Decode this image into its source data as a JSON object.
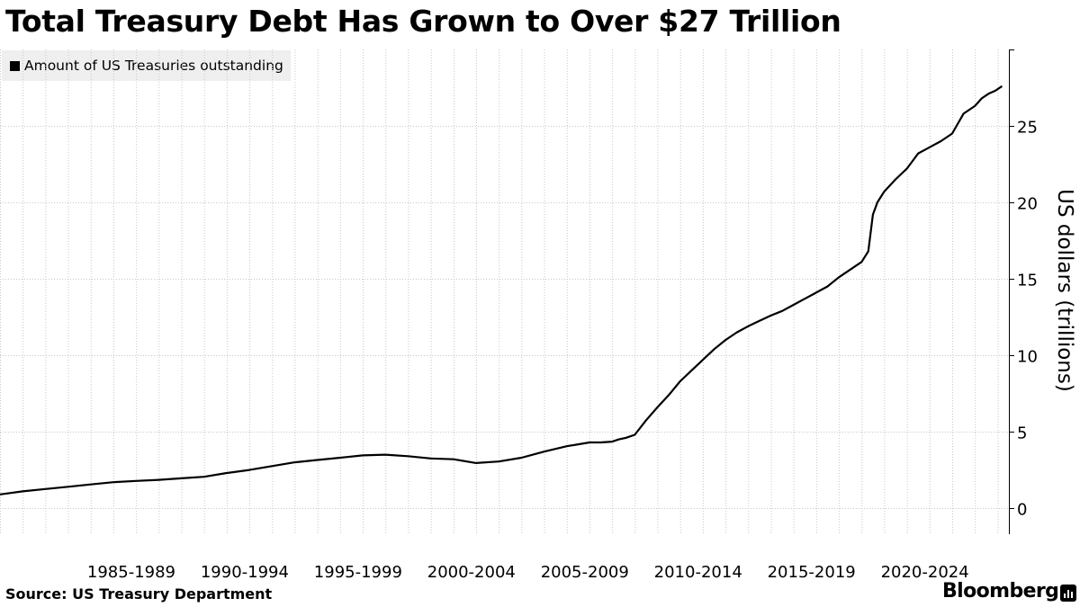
{
  "title": "Total Treasury Debt Has Grown to Over $27 Trillion",
  "source": "Source: US Treasury Department",
  "brand": "Bloomberg",
  "icons": {
    "legend_swatch": "square",
    "brand_mark": "bar-chart-icon"
  },
  "colors": {
    "line": "#000000",
    "grid": "#c8c8c8",
    "legend_bg": "#efefef"
  },
  "chart_data": {
    "type": "line",
    "title": "Total Treasury Debt Has Grown to Over $27 Trillion",
    "xlabel": "",
    "ylabel": "US dollars (trillions)",
    "xlim": [
      1980,
      2024.5
    ],
    "ylim": [
      -1.7,
      30
    ],
    "yticks": [
      0,
      5,
      10,
      15,
      20,
      25
    ],
    "y_axis_side": "right",
    "grid": true,
    "legend_position": "top-left",
    "x_tick_labels": [
      "1985-1989",
      "1990-1994",
      "1995-1999",
      "2000-2004",
      "2005-2009",
      "2010-2014",
      "2015-2019",
      "2020-2024"
    ],
    "x_tick_centers": [
      1985,
      1990,
      1995,
      2000,
      2005,
      2010,
      2015,
      2020
    ],
    "x_gridlines": [
      1980,
      1981,
      1982,
      1983,
      1984,
      1985,
      1986,
      1987,
      1988,
      1989,
      1990,
      1991,
      1992,
      1993,
      1994,
      1995,
      1996,
      1997,
      1998,
      1999,
      2000,
      2001,
      2002,
      2003,
      2004,
      2005,
      2006,
      2007,
      2008,
      2009,
      2010,
      2011,
      2012,
      2013,
      2014,
      2015,
      2016,
      2017,
      2018,
      2019,
      2020,
      2021,
      2022,
      2023,
      2024
    ],
    "series": [
      {
        "name": "Amount of US Treasuries outstanding",
        "x": [
          1980.0,
          1981.0,
          1982.0,
          1983.0,
          1984.0,
          1985.0,
          1986.0,
          1987.0,
          1988.0,
          1989.0,
          1990.0,
          1991.0,
          1992.0,
          1993.0,
          1994.0,
          1995.0,
          1996.0,
          1997.0,
          1998.0,
          1999.0,
          2000.0,
          2001.0,
          2002.0,
          2003.0,
          2004.0,
          2005.0,
          2006.0,
          2006.5,
          2007.0,
          2007.3,
          2007.6,
          2008.0,
          2008.5,
          2009.0,
          2009.5,
          2010.0,
          2010.5,
          2011.0,
          2011.5,
          2012.0,
          2012.5,
          2013.0,
          2013.5,
          2014.0,
          2014.5,
          2015.0,
          2015.5,
          2016.0,
          2016.5,
          2017.0,
          2017.5,
          2018.0,
          2018.3,
          2018.5,
          2018.7,
          2019.0,
          2019.5,
          2020.0,
          2020.5,
          2021.0,
          2021.5,
          2022.0,
          2022.5,
          2023.0,
          2023.3,
          2023.6,
          2023.9,
          2024.2
        ],
        "y": [
          0.9,
          1.1,
          1.25,
          1.4,
          1.55,
          1.7,
          1.78,
          1.85,
          1.95,
          2.05,
          2.3,
          2.5,
          2.75,
          3.0,
          3.15,
          3.3,
          3.45,
          3.5,
          3.4,
          3.25,
          3.2,
          2.95,
          3.05,
          3.3,
          3.7,
          4.05,
          4.3,
          4.3,
          4.35,
          4.5,
          4.6,
          4.8,
          5.75,
          6.6,
          7.4,
          8.3,
          9.0,
          9.7,
          10.4,
          11.0,
          11.5,
          11.9,
          12.25,
          12.6,
          12.9,
          13.3,
          13.7,
          14.1,
          14.5,
          15.1,
          15.6,
          16.1,
          16.8,
          19.2,
          20.0,
          20.7,
          21.5,
          22.2,
          23.2,
          23.6,
          24.0,
          24.5,
          25.8,
          26.3,
          26.8,
          27.1,
          27.3,
          27.6
        ]
      }
    ]
  }
}
